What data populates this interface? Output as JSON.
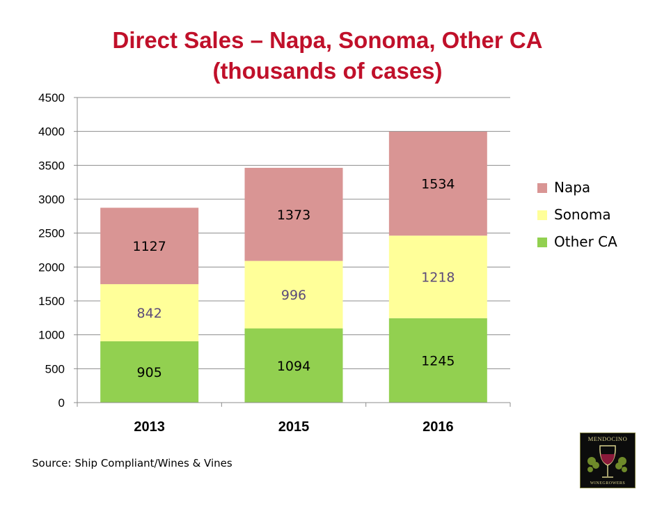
{
  "title_line1": "Direct Sales – Napa, Sonoma, Other CA",
  "title_line2": "(thousands of cases)",
  "source": "Source: Ship Compliant/Wines & Vines",
  "logo": {
    "top_text": "MENDOCINO",
    "bottom_text": "WINEGROWERS"
  },
  "chart_data": {
    "type": "bar",
    "stacked": true,
    "categories": [
      "2013",
      "2015",
      "2016"
    ],
    "series": [
      {
        "name": "Other CA",
        "values": [
          905,
          1094,
          1245
        ],
        "color": "#92d050"
      },
      {
        "name": "Sonoma",
        "values": [
          842,
          996,
          1218
        ],
        "color": "#ffff99"
      },
      {
        "name": "Napa",
        "values": [
          1127,
          1373,
          1534
        ],
        "color": "#d99594"
      }
    ],
    "label_colors": [
      "#000000",
      "#5b4a7a",
      "#000000"
    ],
    "ylim": [
      0,
      4500
    ],
    "yticks": [
      0,
      500,
      1000,
      1500,
      2000,
      2500,
      3000,
      3500,
      4000,
      4500
    ],
    "legend_order": [
      "Napa",
      "Sonoma",
      "Other CA"
    ],
    "legend_position": "right",
    "grid": true
  }
}
